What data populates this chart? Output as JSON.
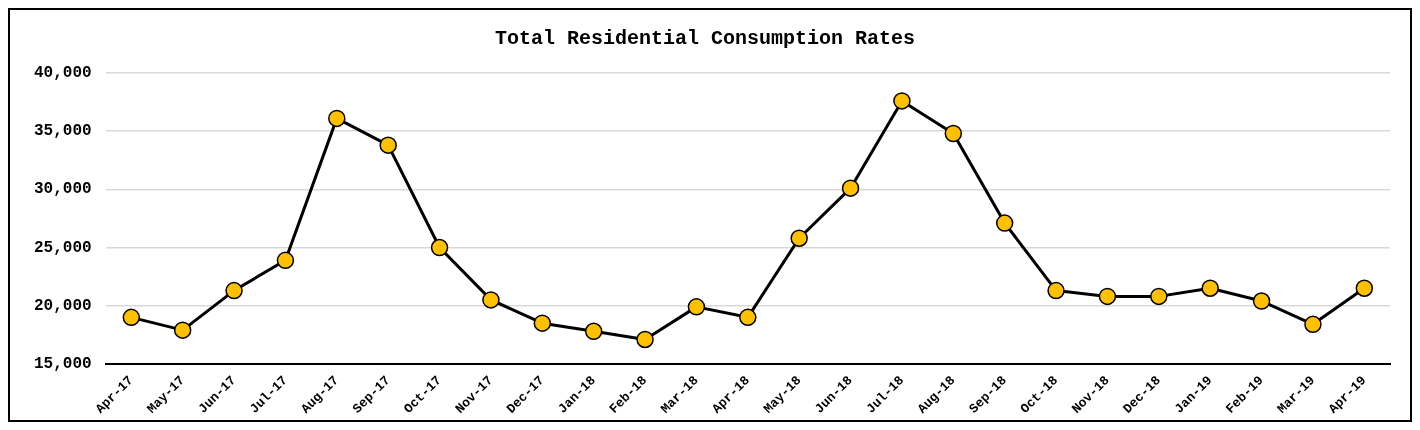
{
  "chart_data": {
    "type": "line",
    "title": "Total Residential Consumption Rates",
    "categories": [
      "Apr-17",
      "May-17",
      "Jun-17",
      "Jul-17",
      "Aug-17",
      "Sep-17",
      "Oct-17",
      "Nov-17",
      "Dec-17",
      "Jan-18",
      "Feb-18",
      "Mar-18",
      "Apr-18",
      "May-18",
      "Jun-18",
      "Jul-18",
      "Aug-18",
      "Sep-18",
      "Oct-18",
      "Nov-18",
      "Dec-18",
      "Jan-19",
      "Feb-19",
      "Mar-19",
      "Apr-19"
    ],
    "series": [
      {
        "color": "#000000",
        "values": [
          19000,
          17900,
          21300,
          23900,
          36100,
          33800,
          25000,
          20500,
          18500,
          17800,
          17100,
          19900,
          19000,
          25800,
          30100,
          37600,
          34800,
          27100,
          21300,
          20800,
          20800,
          21500,
          20400,
          18400,
          21500
        ]
      }
    ],
    "ylim": [
      15000,
      40000
    ],
    "yticks": [
      {
        "value": 15000,
        "label": "15,000"
      },
      {
        "value": 20000,
        "label": "20,000"
      },
      {
        "value": 25000,
        "label": "25,000"
      },
      {
        "value": 30000,
        "label": "30,000"
      },
      {
        "value": 35000,
        "label": "35,000"
      },
      {
        "value": 40000,
        "label": "40,000"
      }
    ],
    "grid": "y",
    "legend": false,
    "marker": "circle",
    "line_style": "solid"
  }
}
